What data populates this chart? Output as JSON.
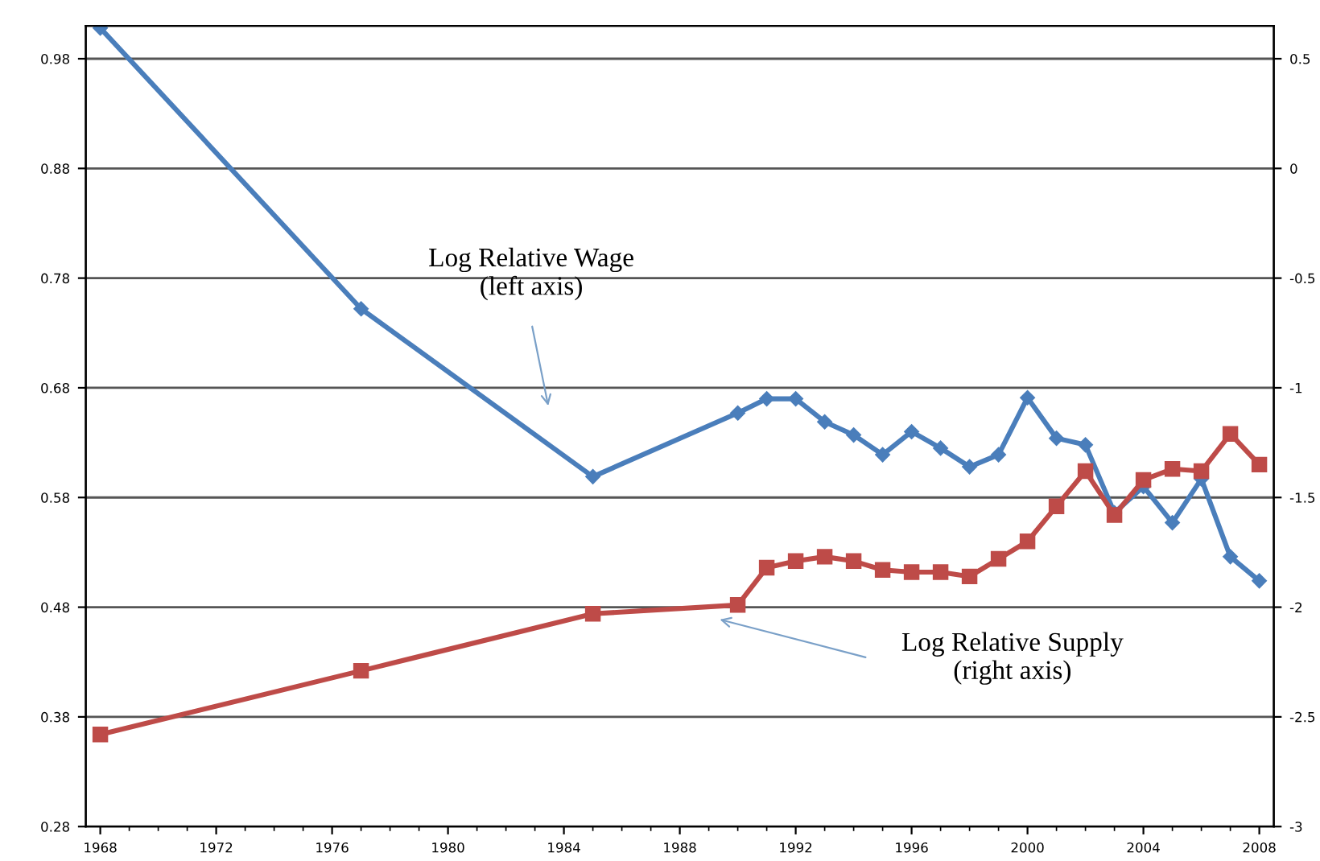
{
  "chart_data": {
    "type": "line",
    "x": [
      1968,
      1977,
      1985,
      1990,
      1991,
      1992,
      1993,
      1994,
      1995,
      1996,
      1997,
      1998,
      1999,
      2000,
      2001,
      2002,
      2003,
      2004,
      2005,
      2006,
      2007,
      2008
    ],
    "series": [
      {
        "color": "#4a7ebb",
        "marker": "diamond",
        "values": [
          1.008,
          0.752,
          0.599,
          0.657,
          0.67,
          0.67,
          0.649,
          0.637,
          0.619,
          0.64,
          0.625,
          0.608,
          0.619,
          0.671,
          0.634,
          0.628,
          0.566,
          0.59,
          0.557,
          0.597,
          0.526,
          0.504
        ]
      },
      {
        "color": "#be4b48",
        "marker": "square",
        "axis": "y2",
        "values": [
          -2.58,
          -2.29,
          -2.03,
          -1.99,
          -1.82,
          -1.79,
          -1.77,
          -1.79,
          -1.83,
          -1.84,
          -1.84,
          -1.86,
          -1.78,
          -1.7,
          -1.54,
          -1.38,
          -1.58,
          -1.42,
          -1.37,
          -1.38,
          -1.21,
          -1.35
        ]
      }
    ],
    "xlim": [
      1967.5,
      2008.5
    ],
    "xticks": [
      1968,
      1972,
      1976,
      1980,
      1984,
      1988,
      1992,
      1996,
      2000,
      2004,
      2008
    ],
    "ylim": [
      0.28,
      1.01
    ],
    "yticks": [
      0.28,
      0.38,
      0.48,
      0.58,
      0.68,
      0.78,
      0.88,
      0.98
    ],
    "y2lim": [
      -3,
      0.65
    ],
    "y2ticks": [
      -3,
      -2.5,
      -2,
      -1.5,
      -1,
      -0.5,
      0,
      0.5
    ],
    "grid": "y",
    "legend": false,
    "annotations": [
      "Log Relative Wage\n(left axis)",
      "Log Relative Supply\n(right axis)"
    ]
  }
}
